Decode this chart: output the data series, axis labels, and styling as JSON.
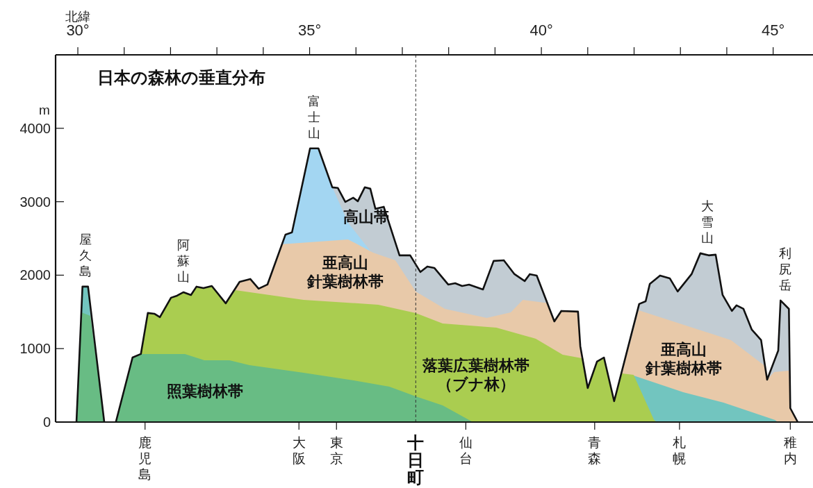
{
  "chart_data": {
    "type": "area",
    "title": "日本の森林の垂直分布",
    "xlabel": "北緯",
    "ylabel": "m",
    "xlim": [
      29.52,
      45.8
    ],
    "ylim": [
      0,
      5000
    ],
    "yticks": [
      0,
      1000,
      2000,
      3000,
      4000
    ],
    "xticks": [
      {
        "value": 30,
        "label": "30°"
      },
      {
        "value": 31,
        "label": null
      },
      {
        "value": 32,
        "label": null
      },
      {
        "value": 33,
        "label": null
      },
      {
        "value": 34,
        "label": null
      },
      {
        "value": 35,
        "label": "35°"
      },
      {
        "value": 36,
        "label": null
      },
      {
        "value": 37,
        "label": null
      },
      {
        "value": 38,
        "label": null
      },
      {
        "value": 39,
        "label": null
      },
      {
        "value": 40,
        "label": "40°"
      },
      {
        "value": 41,
        "label": null
      },
      {
        "value": 42,
        "label": null
      },
      {
        "value": 43,
        "label": null
      },
      {
        "value": 44,
        "label": null
      },
      {
        "value": 45,
        "label": "45°"
      }
    ],
    "grid": false,
    "series": [
      {
        "name": "高山帯",
        "color": "#c2ccd3",
        "line_style": "solid",
        "x": [
          29.97,
          30.1,
          30.22,
          30.57,
          30.7,
          30.82,
          31.18,
          31.36,
          31.51,
          31.65,
          31.77,
          32.01,
          32.14,
          32.28,
          32.44,
          32.56,
          32.71,
          32.89,
          33.19,
          33.49,
          33.72,
          33.9,
          34.09,
          34.48,
          34.62,
          35.01,
          35.19,
          35.49,
          35.61,
          35.77,
          35.94,
          36.04,
          36.19,
          36.31,
          36.42,
          36.6,
          36.94,
          37.17,
          37.39,
          37.54,
          37.69,
          37.99,
          38.14,
          38.29,
          38.44,
          38.74,
          38.97,
          39.19,
          39.42,
          39.64,
          39.75,
          39.9,
          40.09,
          40.28,
          40.43,
          40.79,
          40.84,
          41.0,
          41.2,
          41.35,
          41.57,
          42.11,
          42.25,
          42.34,
          42.56,
          42.77,
          42.94,
          43.24,
          43.43,
          43.61,
          43.76,
          43.91,
          44.11,
          44.21,
          44.36,
          44.54,
          44.74,
          44.87,
          45.11,
          45.16,
          45.34,
          45.37,
          45.53
        ],
        "values": [
          0,
          1844,
          1844,
          0,
          null,
          0,
          879,
          927,
          1485,
          1475,
          1428,
          1693,
          1721,
          1768,
          1730,
          1844,
          1825,
          1853,
          1617,
          1910,
          1948,
          1816,
          1872,
          2553,
          2582,
          3726,
          3726,
          3196,
          3187,
          2998,
          3054,
          3007,
          3196,
          3177,
          2903,
          2931,
          2270,
          2270,
          2043,
          2118,
          2099,
          1872,
          1891,
          1853,
          1872,
          1806,
          2194,
          2203,
          2014,
          1920,
          2014,
          1995,
          1683,
          1371,
          1513,
          1504,
          1031,
          463,
          823,
          879,
          284,
          1608,
          1645,
          1882,
          1995,
          1957,
          1778,
          2014,
          2298,
          2270,
          2279,
          1730,
          1513,
          1589,
          1541,
          1258,
          1116,
          577,
          974,
          1655,
          1541,
          189,
          0
        ]
      },
      {
        "color": "#a3d6f2",
        "x": [
          34.42,
          34.48,
          34.62,
          35.01,
          35.19,
          35.49,
          35.83,
          36.34
        ],
        "values": [
          2421,
          2553,
          2582,
          3726,
          3726,
          3196,
          2714,
          2307
        ]
      },
      {
        "name": "亜高山針葉樹林帯",
        "color": "#e8c9a9",
        "x": [
          33.4,
          33.49,
          33.72,
          33.9,
          34.09,
          34.42,
          35.83,
          36.37,
          36.85,
          37.29,
          37.92,
          38.82,
          39.34,
          39.6,
          40.06,
          40.12,
          40.28,
          40.43,
          40.79,
          40.84,
          40.9,
          41.3,
          41.74,
          42.1,
          44.09,
          44.8,
          44.87,
          45.02,
          45.34,
          45.37,
          45.53
        ],
        "values": [
          1797,
          1910,
          1948,
          1816,
          1872,
          2421,
          2487,
          2307,
          2203,
          1778,
          1541,
          1418,
          1494,
          1664,
          1626,
          1626,
          1371,
          1513,
          1504,
          1031,
          870,
          null,
          662,
          1522,
          1116,
          775,
          577,
          681,
          700,
          189,
          0
        ]
      },
      {
        "color": "#72c5bf",
        "x": [
          30.08,
          30.1,
          30.22,
          30.27,
          30.7,
          41.99,
          43.06,
          43.93,
          45.04,
          45.1
        ],
        "values": [
          1494,
          1844,
          1844,
          1447,
          null,
          634,
          406,
          265,
          28,
          0
        ]
      },
      {
        "name": "落葉広葉樹林帯（ブナ林）",
        "color": "#aacd50",
        "x": [
          31.36,
          31.51,
          31.65,
          31.77,
          32.01,
          32.14,
          32.28,
          32.44,
          32.56,
          32.71,
          32.89,
          33.19,
          33.4,
          34.87,
          36.48,
          37.29,
          37.87,
          39.03,
          39.88,
          40.46,
          40.87,
          40.9,
          41.0,
          41.2,
          41.35,
          41.57,
          41.74,
          41.99,
          42.43,
          42.49
        ],
        "values": [
          927,
          1485,
          1475,
          1428,
          1693,
          1721,
          1768,
          1730,
          1844,
          1825,
          1853,
          1617,
          1797,
          1664,
          1598,
          1485,
          1343,
          1286,
          1135,
          917,
          870,
          870,
          463,
          823,
          870,
          284,
          662,
          643,
          28,
          0
        ]
      },
      {
        "name": "照葉樹林帯",
        "color": "#68bc84",
        "x": [
          29.97,
          30.08,
          30.27,
          30.57,
          30.7,
          30.82,
          31.18,
          31.36,
          32.31,
          32.73,
          33.27,
          33.7,
          34.87,
          35.95,
          36.72,
          37.29,
          37.87,
          38.44,
          38.52
        ],
        "values": [
          0,
          1494,
          1447,
          0,
          null,
          0,
          879,
          927,
          927,
          842,
          842,
          775,
          671,
          567,
          482,
          350,
          227,
          28,
          0
        ]
      }
    ],
    "ref_lines": [
      {
        "axis": "x",
        "value": 37.29,
        "label": "十日町",
        "line_style": "dashed",
        "color": "#333333"
      }
    ],
    "annotations": [
      {
        "text": "屋久島",
        "x": 30.16,
        "y": 1844
      },
      {
        "text": "阿蘇山",
        "x": 32.28,
        "y": 1768
      },
      {
        "text": "富士山",
        "x": 35.1,
        "y": 3726
      },
      {
        "text": "大雪山",
        "x": 43.58,
        "y": 2298
      },
      {
        "text": "利尻岳",
        "x": 45.26,
        "y": 1655
      },
      {
        "text": "鹿児島",
        "x": 31.45,
        "y": 0
      },
      {
        "text": "大阪",
        "x": 34.77,
        "y": 0
      },
      {
        "text": "東京",
        "x": 35.58,
        "y": 0
      },
      {
        "text": "仙台",
        "x": 38.37,
        "y": 0
      },
      {
        "text": "青森",
        "x": 41.15,
        "y": 0
      },
      {
        "text": "札幌",
        "x": 42.98,
        "y": 0
      },
      {
        "text": "稚内",
        "x": 45.37,
        "y": 0
      }
    ]
  }
}
